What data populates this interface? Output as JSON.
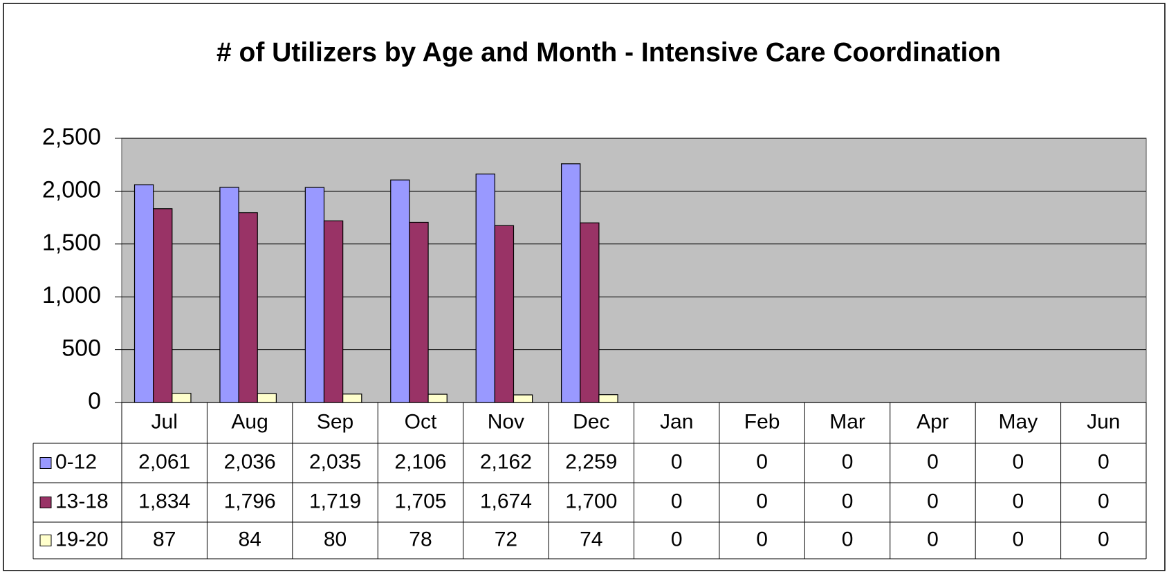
{
  "chart_data": {
    "type": "bar",
    "title": "# of Utilizers by Age and Month - Intensive Care Coordination",
    "categories": [
      "Jul",
      "Aug",
      "Sep",
      "Oct",
      "Nov",
      "Dec",
      "Jan",
      "Feb",
      "Mar",
      "Apr",
      "May",
      "Jun"
    ],
    "series": [
      {
        "name": "0-12",
        "color": "#9999ff",
        "values": [
          2061,
          2036,
          2035,
          2106,
          2162,
          2259,
          0,
          0,
          0,
          0,
          0,
          0
        ],
        "value_labels": [
          "2,061",
          "2,036",
          "2,035",
          "2,106",
          "2,162",
          "2,259",
          "0",
          "0",
          "0",
          "0",
          "0",
          "0"
        ]
      },
      {
        "name": "13-18",
        "color": "#993366",
        "values": [
          1834,
          1796,
          1719,
          1705,
          1674,
          1700,
          0,
          0,
          0,
          0,
          0,
          0
        ],
        "value_labels": [
          "1,834",
          "1,796",
          "1,719",
          "1,705",
          "1,674",
          "1,700",
          "0",
          "0",
          "0",
          "0",
          "0",
          "0"
        ]
      },
      {
        "name": "19-20",
        "color": "#ffffcc",
        "values": [
          87,
          84,
          80,
          78,
          72,
          74,
          0,
          0,
          0,
          0,
          0,
          0
        ],
        "value_labels": [
          "87",
          "84",
          "80",
          "78",
          "72",
          "74",
          "0",
          "0",
          "0",
          "0",
          "0",
          "0"
        ]
      }
    ],
    "ylim": [
      0,
      2500
    ],
    "yticks": [
      0,
      500,
      {
        "value": 1000,
        "label": "1,000"
      },
      {
        "value": 1500,
        "label": "1,500"
      },
      {
        "value": 2000,
        "label": "2,000"
      },
      {
        "value": 2500,
        "label": "2,500"
      }
    ],
    "grid": true,
    "plot_background": "#c0c0c0"
  }
}
